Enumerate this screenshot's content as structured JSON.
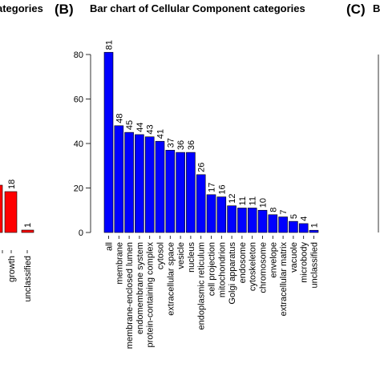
{
  "left_panel": {
    "title_fragment": "ategories",
    "bar_labels": [
      "18",
      "1"
    ],
    "bar_values": [
      18,
      1
    ],
    "tick_labels": [
      "growth",
      "unclassified"
    ]
  },
  "right_panel": {
    "panel_letter": "(C)",
    "title_fragment": "B"
  },
  "colors": {
    "left_bars": "#ff0000",
    "main_bars": "#0000ff"
  },
  "chart_data": {
    "type": "bar",
    "panel_letter": "(B)",
    "title": "Bar chart of Cellular Component categories",
    "categories": [
      "all",
      "membrane",
      "membrane-enclosed lumen",
      "endomembrane system",
      "protein-containing complex",
      "cytosol",
      "extracellular space",
      "vesicle",
      "nucleus",
      "endoplasmic reticulum",
      "cell projection",
      "mitochondrion",
      "Golgi apparatus",
      "endosome",
      "cytoskeleton",
      "chromosome",
      "envelope",
      "extracellular matrix",
      "vacuole",
      "microbody",
      "unclassified"
    ],
    "values": [
      81,
      48,
      45,
      44,
      43,
      41,
      37,
      36,
      36,
      26,
      17,
      16,
      12,
      11,
      11,
      10,
      8,
      7,
      5,
      4,
      1
    ],
    "ylim": [
      0,
      80
    ],
    "yticks": [
      "0",
      "20",
      "40",
      "60",
      "80"
    ],
    "xlabel": "",
    "ylabel": "",
    "grid": false,
    "bar_color": "#0000ff"
  }
}
